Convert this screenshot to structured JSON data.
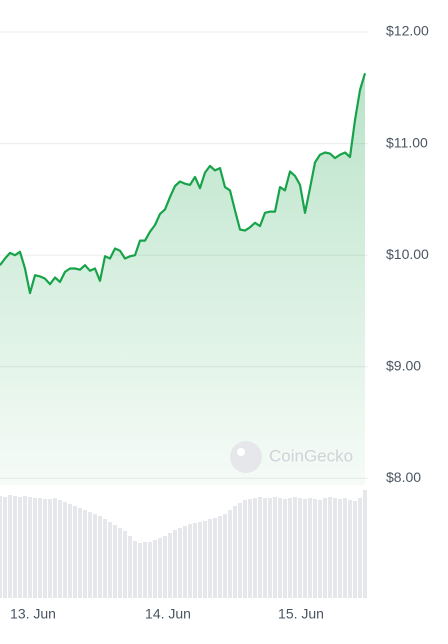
{
  "chart_data": [
    {
      "type": "line",
      "watermark": "CoinGecko",
      "color": "#18a34a",
      "grid": true,
      "x": [
        0,
        1,
        2,
        3,
        4,
        5,
        6,
        7,
        8,
        9,
        10,
        11,
        12,
        13,
        14,
        15,
        16,
        17,
        18,
        19,
        20,
        21,
        22,
        23,
        24,
        25,
        26,
        27,
        28,
        29,
        30,
        31,
        32,
        33,
        34,
        35,
        36,
        37,
        38,
        39,
        40,
        41,
        42,
        43,
        44,
        45,
        46,
        47,
        48,
        49,
        50,
        51,
        52,
        53,
        54,
        55,
        56,
        57,
        58,
        59,
        60,
        61,
        62,
        63,
        64,
        65,
        66,
        67,
        68,
        69,
        70,
        71,
        72,
        73
      ],
      "values": [
        9.91,
        9.97,
        10.02,
        10.0,
        10.03,
        9.88,
        9.66,
        9.82,
        9.81,
        9.79,
        9.74,
        9.8,
        9.76,
        9.85,
        9.88,
        9.88,
        9.87,
        9.91,
        9.86,
        9.88,
        9.77,
        9.99,
        9.97,
        10.06,
        10.04,
        9.97,
        9.99,
        10.0,
        10.13,
        10.13,
        10.21,
        10.27,
        10.37,
        10.41,
        10.52,
        10.62,
        10.66,
        10.64,
        10.63,
        10.7,
        10.6,
        10.74,
        10.8,
        10.76,
        10.78,
        10.61,
        10.58,
        10.4,
        10.23,
        10.22,
        10.25,
        10.29,
        10.26,
        10.38,
        10.39,
        10.39,
        10.61,
        10.58,
        10.75,
        10.71,
        10.63,
        10.38,
        10.6,
        10.83,
        10.9,
        10.92,
        10.91,
        10.87,
        10.9,
        10.92,
        10.88,
        11.21,
        11.48,
        11.63
      ],
      "xlim": [
        0,
        73
      ],
      "xticks": [
        {
          "value": 6.6,
          "label": "13. Jun"
        },
        {
          "value": 33.6,
          "label": "14. Jun"
        },
        {
          "value": 60.2,
          "label": "15. Jun"
        }
      ],
      "ylim": [
        7.94,
        12.0
      ],
      "yticks": [
        {
          "value": 8,
          "label": "$8.00"
        },
        {
          "value": 9,
          "label": "$9.00"
        },
        {
          "value": 10,
          "label": "$10.00"
        },
        {
          "value": 11,
          "label": "$11.00"
        },
        {
          "value": 12,
          "label": "$12.00"
        }
      ]
    },
    {
      "type": "bar",
      "color": "#e5e7eb",
      "values": [
        102,
        101,
        103,
        102,
        101,
        102,
        101,
        100,
        100,
        99,
        99,
        100,
        98,
        96,
        94,
        92,
        90,
        88,
        86,
        84,
        82,
        79,
        76,
        73,
        70,
        67,
        62,
        57,
        55,
        56,
        56,
        58,
        60,
        62,
        65,
        68,
        70,
        72,
        74,
        75,
        76,
        77,
        79,
        80,
        82,
        84,
        88,
        92,
        95,
        98,
        99,
        100,
        101,
        100,
        100,
        101,
        100,
        99,
        100,
        101,
        100,
        99,
        100,
        99,
        98,
        100,
        101,
        100,
        99,
        100,
        98,
        97,
        100,
        108
      ]
    }
  ]
}
